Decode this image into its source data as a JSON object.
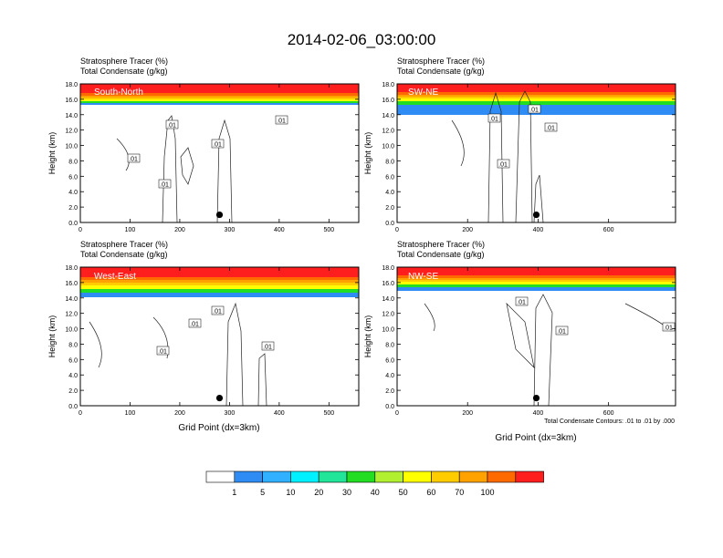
{
  "title": "2014-02-06_03:00:00",
  "subtitle_line1": "Stratosphere Tracer   (%)",
  "subtitle_line2": "Total Condensate   (g/kg)",
  "ylabel": "Height (km)",
  "xlabel": "Grid Point (dx=3km)",
  "contour_note": "Total Condensate Contours: .01 to .01 by .000",
  "contour_label": ".01",
  "y_ticks": [
    "0.0",
    "2.0",
    "4.0",
    "6.0",
    "8.0",
    "10.0",
    "12.0",
    "14.0",
    "16.0",
    "18.0"
  ],
  "colorbar": {
    "labels": [
      "1",
      "5",
      "10",
      "20",
      "30",
      "40",
      "50",
      "60",
      "70",
      "100"
    ],
    "colors": [
      "#ffffff",
      "#2f8cf5",
      "#30b0ff",
      "#00f0ff",
      "#22e59a",
      "#22dd22",
      "#b0f030",
      "#ffff00",
      "#ffcc00",
      "#ffa200",
      "#ff6a00",
      "#ff1e1e"
    ]
  },
  "chart_data": [
    {
      "type": "heatmap",
      "panel": "South-North",
      "xlim": [
        0,
        560
      ],
      "ylim": [
        0,
        18
      ],
      "x_ticks": [
        0,
        100,
        200,
        300,
        400,
        500
      ],
      "marker": {
        "x": 280,
        "y": 1.0
      },
      "contour_label_count": 5
    },
    {
      "type": "heatmap",
      "panel": "SW-NE",
      "xlim": [
        0,
        790
      ],
      "ylim": [
        0,
        18
      ],
      "x_ticks": [
        0,
        200,
        400,
        600
      ],
      "marker": {
        "x": 395,
        "y": 1.0
      },
      "contour_label_count": 4
    },
    {
      "type": "heatmap",
      "panel": "West-East",
      "xlim": [
        0,
        560
      ],
      "ylim": [
        0,
        18
      ],
      "x_ticks": [
        0,
        100,
        200,
        300,
        400,
        500
      ],
      "marker": {
        "x": 280,
        "y": 1.0
      },
      "contour_label_count": 4
    },
    {
      "type": "heatmap",
      "panel": "NW-SE",
      "xlim": [
        0,
        790
      ],
      "ylim": [
        0,
        18
      ],
      "x_ticks": [
        0,
        200,
        400,
        600
      ],
      "marker": {
        "x": 395,
        "y": 1.0
      },
      "contour_label_count": 3
    }
  ]
}
